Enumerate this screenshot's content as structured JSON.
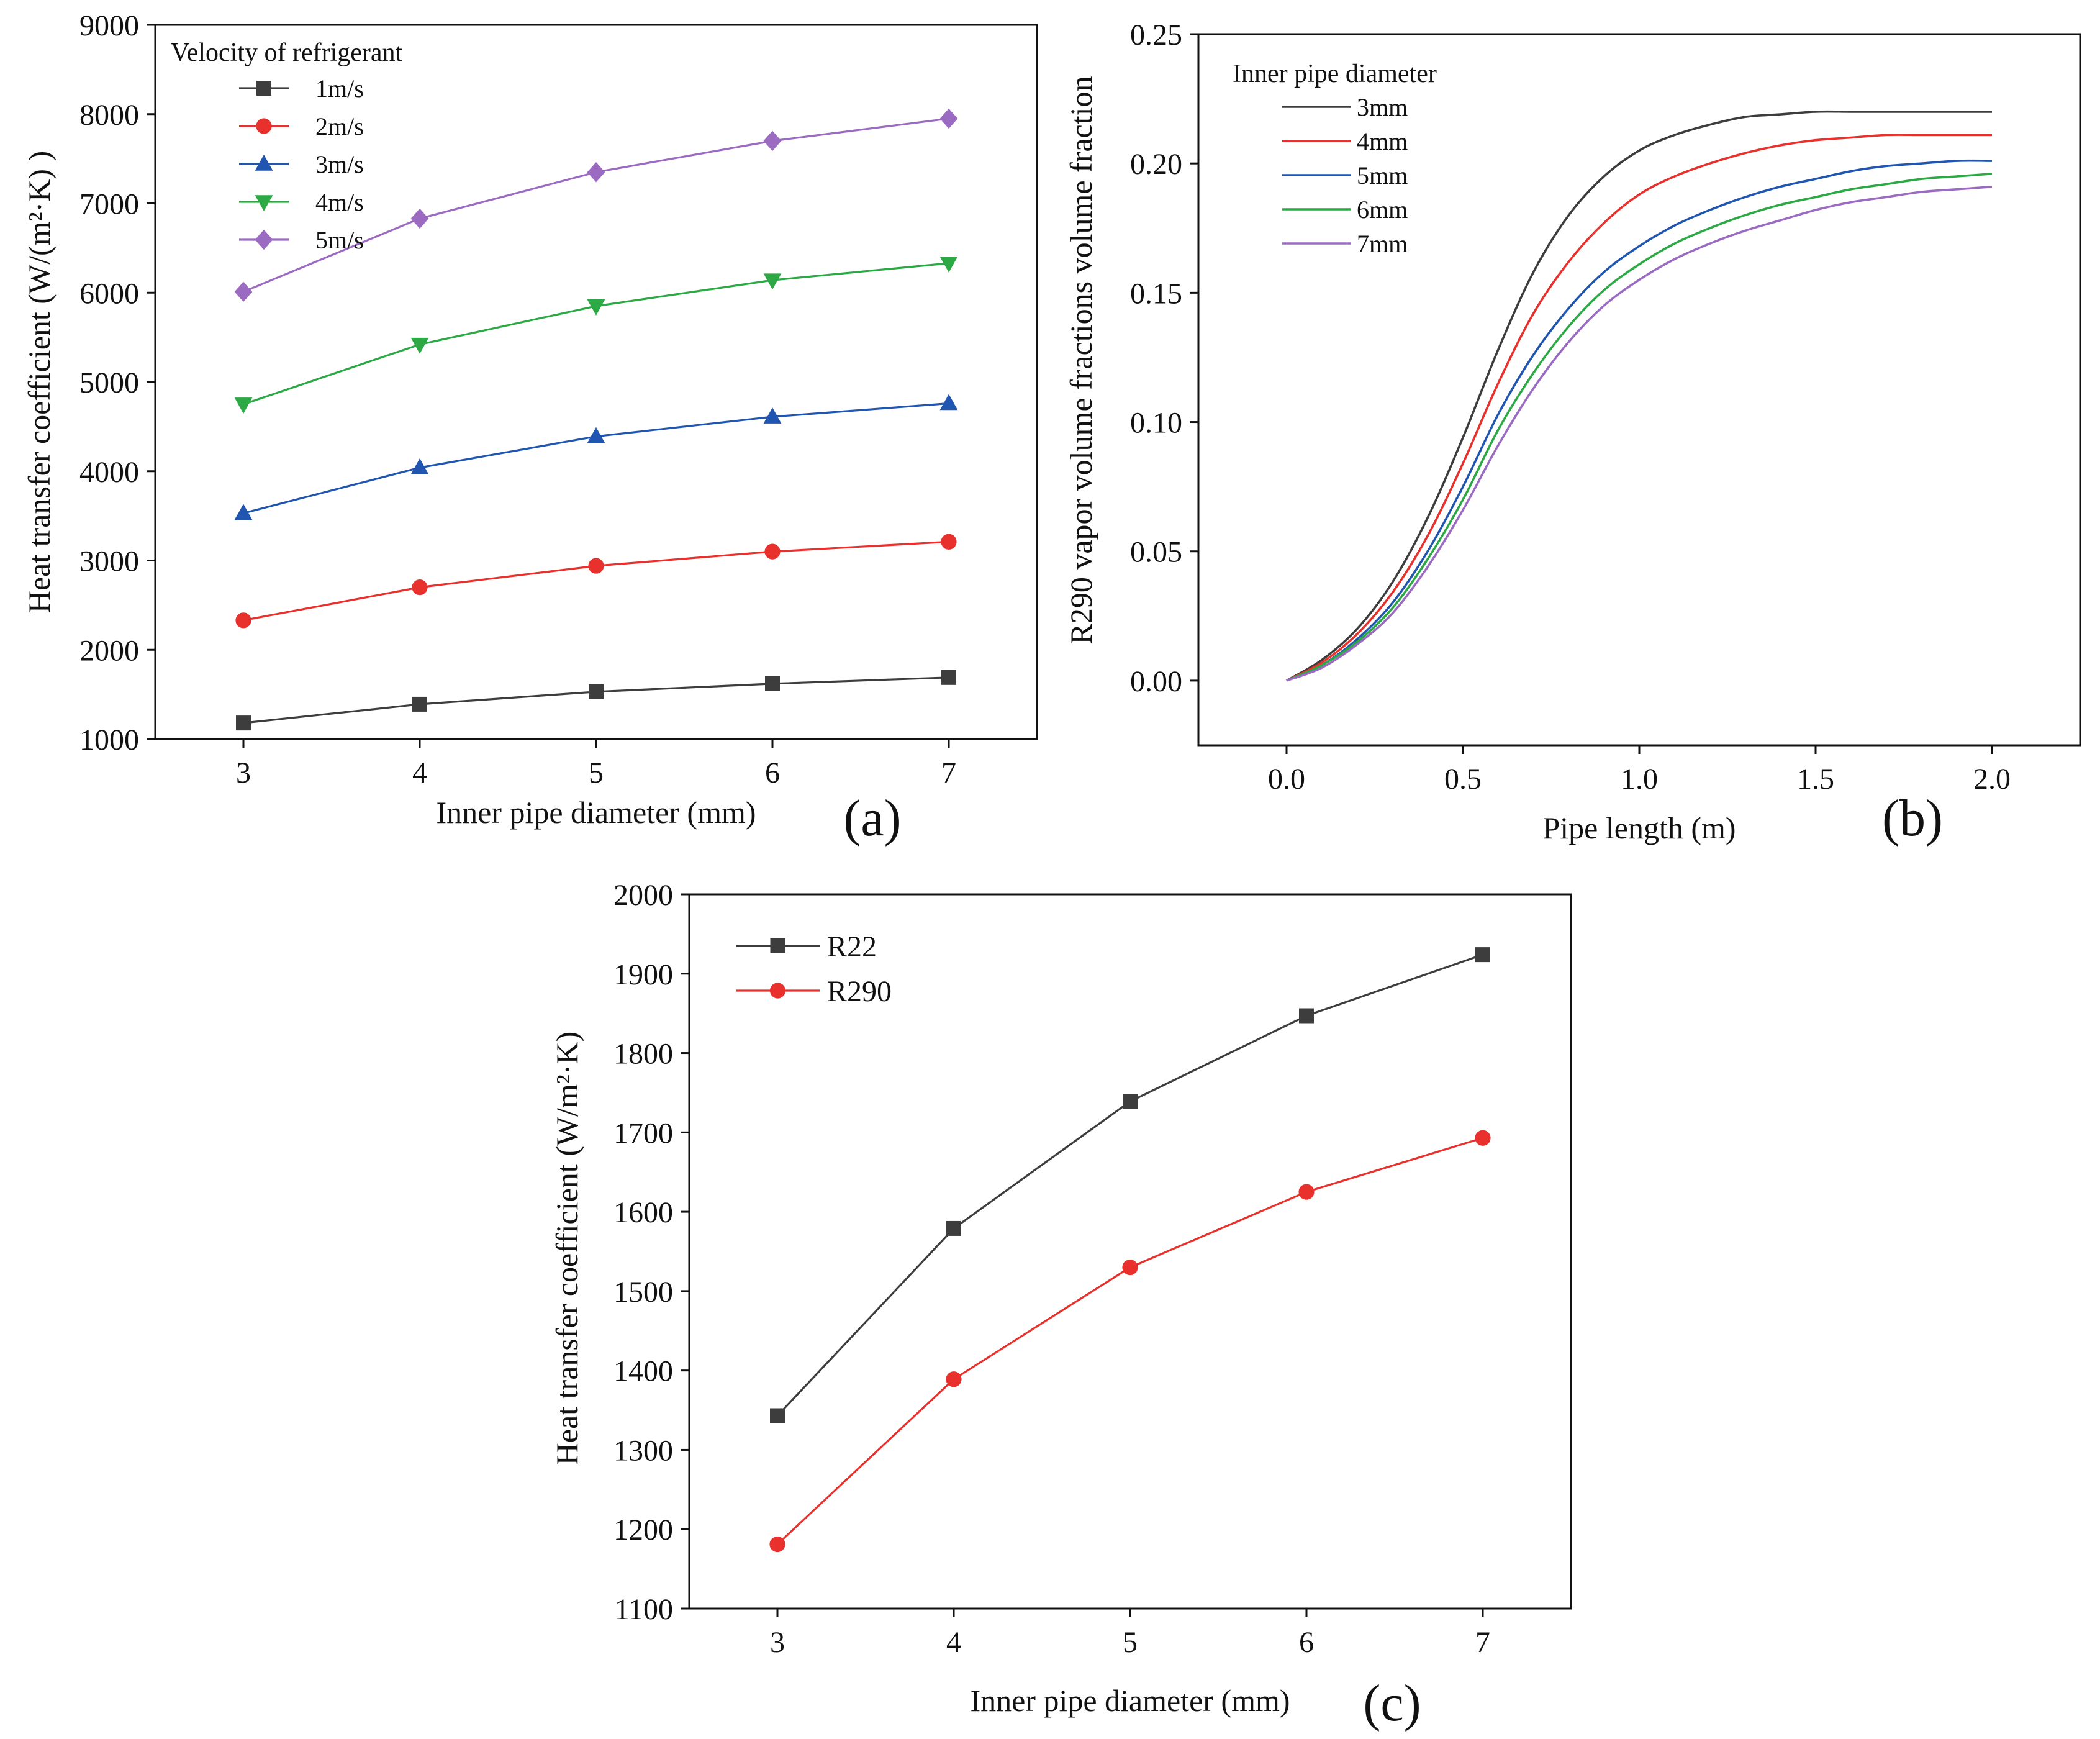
{
  "chart_data": [
    {
      "panel": "(a)",
      "type": "line",
      "xlabel": "Inner pipe diameter (mm)",
      "ylabel": "Heat transfer coefficient (W/(m²·K)  )",
      "xlim": [
        2.5,
        7.5
      ],
      "ylim": [
        1000,
        9000
      ],
      "xticks": [
        3,
        4,
        5,
        6,
        7
      ],
      "yticks": [
        1000,
        2000,
        3000,
        4000,
        5000,
        6000,
        7000,
        8000,
        9000
      ],
      "legend": {
        "title": "Velocity of refrigerant",
        "position": "top-left"
      },
      "x": [
        3,
        4,
        5,
        6,
        7
      ],
      "series": [
        {
          "name": "1m/s",
          "color": "#3d3d3d",
          "marker": "square",
          "values": [
            1180,
            1390,
            1530,
            1620,
            1690
          ]
        },
        {
          "name": "2m/s",
          "color": "#e8302c",
          "marker": "circle",
          "values": [
            2330,
            2700,
            2940,
            3100,
            3210
          ]
        },
        {
          "name": "3m/s",
          "color": "#2056b0",
          "marker": "triangle-up",
          "values": [
            3530,
            4040,
            4390,
            4610,
            4760
          ]
        },
        {
          "name": "4m/s",
          "color": "#2ca845",
          "marker": "triangle-down",
          "values": [
            4750,
            5420,
            5850,
            6140,
            6330
          ]
        },
        {
          "name": "5m/s",
          "color": "#9b6bc2",
          "marker": "diamond",
          "values": [
            6010,
            6830,
            7350,
            7700,
            7950
          ]
        }
      ]
    },
    {
      "panel": "(b)",
      "type": "line",
      "xlabel": "Pipe length (m)",
      "ylabel": "R290 vapor volume fractions volume fraction",
      "xlim": [
        -0.25,
        2.25
      ],
      "ylim": [
        -0.025,
        0.25
      ],
      "xticks": [
        0.0,
        0.5,
        1.0,
        1.5,
        2.0
      ],
      "yticks": [
        0.0,
        0.05,
        0.1,
        0.15,
        0.2,
        0.25
      ],
      "xtick_labels": [
        "0.0",
        "0.5",
        "1.0",
        "1.5",
        "2.0"
      ],
      "ytick_labels": [
        "0.00",
        "0.05",
        "0.10",
        "0.15",
        "0.20",
        "0.25"
      ],
      "legend": {
        "title": "Inner pipe diameter",
        "position": "top-left"
      },
      "x": [
        0.0,
        0.1,
        0.2,
        0.3,
        0.4,
        0.5,
        0.6,
        0.7,
        0.8,
        0.9,
        1.0,
        1.1,
        1.2,
        1.3,
        1.4,
        1.5,
        1.6,
        1.7,
        1.8,
        1.9,
        2.0
      ],
      "series": [
        {
          "name": "3mm",
          "color": "#3d3d3d",
          "values": [
            0.0,
            0.008,
            0.02,
            0.038,
            0.063,
            0.094,
            0.128,
            0.158,
            0.18,
            0.195,
            0.205,
            0.211,
            0.215,
            0.218,
            0.219,
            0.22,
            0.22,
            0.22,
            0.22,
            0.22,
            0.22
          ]
        },
        {
          "name": "4mm",
          "color": "#e8302c",
          "values": [
            0.0,
            0.007,
            0.018,
            0.034,
            0.056,
            0.084,
            0.115,
            0.142,
            0.162,
            0.177,
            0.188,
            0.195,
            0.2,
            0.204,
            0.207,
            0.209,
            0.21,
            0.211,
            0.211,
            0.211,
            0.211
          ]
        },
        {
          "name": "5mm",
          "color": "#2056b0",
          "values": [
            0.0,
            0.006,
            0.016,
            0.03,
            0.05,
            0.075,
            0.103,
            0.126,
            0.144,
            0.158,
            0.168,
            0.176,
            0.182,
            0.187,
            0.191,
            0.194,
            0.197,
            0.199,
            0.2,
            0.201,
            0.201
          ]
        },
        {
          "name": "6mm",
          "color": "#2ca845",
          "values": [
            0.0,
            0.006,
            0.015,
            0.028,
            0.047,
            0.07,
            0.097,
            0.119,
            0.137,
            0.151,
            0.161,
            0.169,
            0.175,
            0.18,
            0.184,
            0.187,
            0.19,
            0.192,
            0.194,
            0.195,
            0.196
          ]
        },
        {
          "name": "7mm",
          "color": "#9b6bc2",
          "values": [
            0.0,
            0.005,
            0.014,
            0.026,
            0.044,
            0.066,
            0.091,
            0.113,
            0.131,
            0.145,
            0.155,
            0.163,
            0.169,
            0.174,
            0.178,
            0.182,
            0.185,
            0.187,
            0.189,
            0.19,
            0.191
          ]
        }
      ]
    },
    {
      "panel": "(c)",
      "type": "line",
      "xlabel": "Inner pipe diameter (mm)",
      "ylabel": "Heat transfer coefficient (W/m²·K)",
      "xlim": [
        2.5,
        7.5
      ],
      "ylim": [
        1100,
        2000
      ],
      "xticks": [
        3,
        4,
        5,
        6,
        7
      ],
      "yticks": [
        1100,
        1200,
        1300,
        1400,
        1500,
        1600,
        1700,
        1800,
        1900,
        2000
      ],
      "legend": {
        "title": "",
        "position": "top-left"
      },
      "x": [
        3,
        4,
        5,
        6,
        7
      ],
      "series": [
        {
          "name": "R22",
          "color": "#3d3d3d",
          "marker": "square",
          "values": [
            1343,
            1579,
            1739,
            1847,
            1924
          ]
        },
        {
          "name": "R290",
          "color": "#e8302c",
          "marker": "circle",
          "values": [
            1181,
            1389,
            1530,
            1625,
            1693
          ]
        }
      ]
    }
  ]
}
